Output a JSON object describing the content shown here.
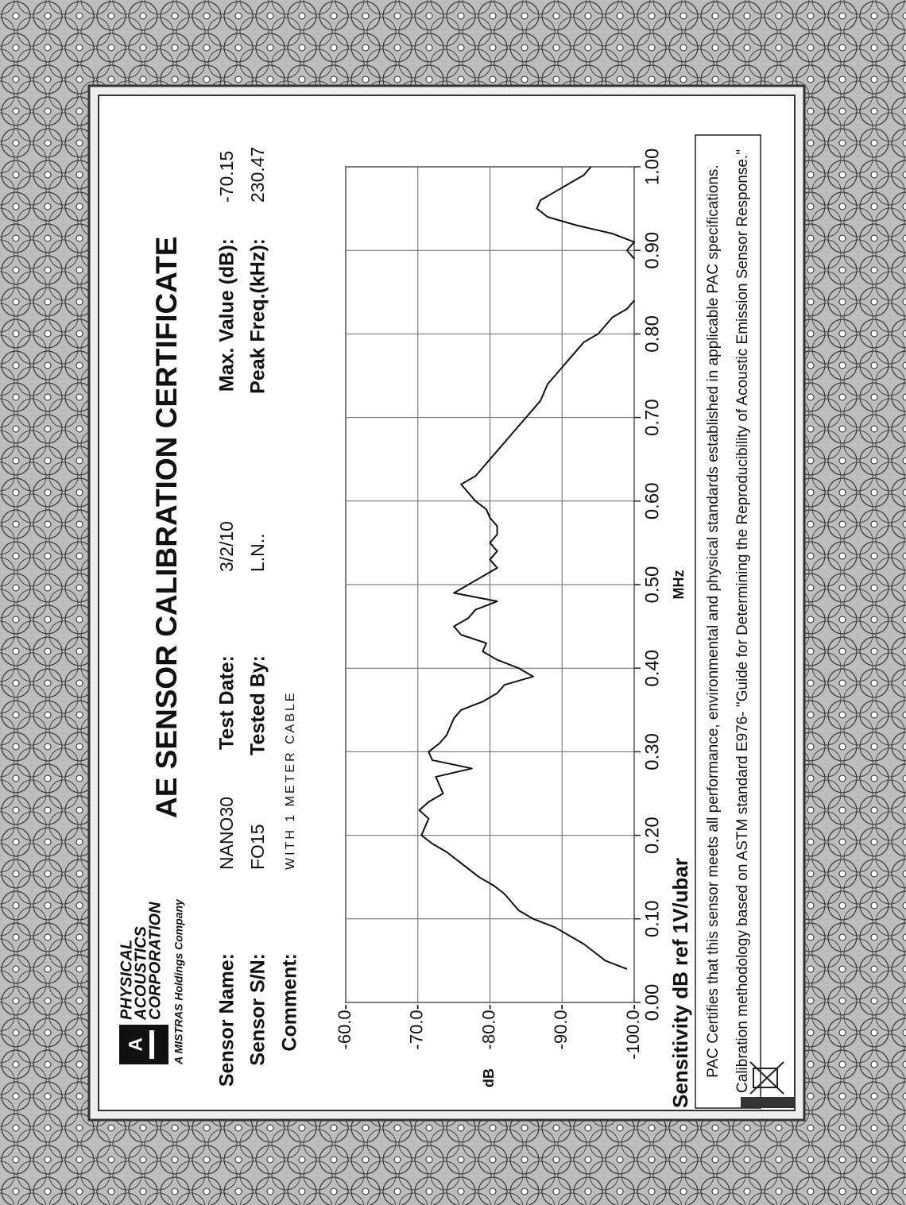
{
  "header": {
    "title": "AE SENSOR CALIBRATION CERTIFICATE"
  },
  "logo": {
    "lines": [
      "PHYSICAL",
      "ACOUSTICS",
      "CORPORATION"
    ],
    "tagline": "A MISTRAS Holdings Company"
  },
  "fields": [
    {
      "label": "Sensor Name:",
      "value": "NANO30"
    },
    {
      "label": "Sensor S/N:",
      "value": "FO15"
    },
    {
      "label": "Comment:",
      "value": "WITH 1 METER CABLE"
    },
    {
      "label": "Test Date:",
      "value": "3/2/10"
    },
    {
      "label": "Tested By:",
      "value": "L.N.."
    },
    {
      "label": "Max. Value (dB):",
      "value": "-70.15"
    },
    {
      "label": "Peak Freq.(kHz):",
      "value": "230.47"
    }
  ],
  "chart_data": {
    "type": "line",
    "x_label": "MHz",
    "y_label": "dB",
    "caption": "Sensitivity dB ref 1V/ubar",
    "color": "#111111",
    "grid": true,
    "xlim": [
      0,
      1
    ],
    "ylim": [
      -100,
      -60
    ],
    "xticks": [
      {
        "value": 0,
        "label": "0.00"
      },
      {
        "value": 0.1,
        "label": "0.10"
      },
      {
        "value": 0.2,
        "label": "0.20"
      },
      {
        "value": 0.3,
        "label": "0.30"
      },
      {
        "value": 0.4,
        "label": "0.40"
      },
      {
        "value": 0.5,
        "label": "0.50"
      },
      {
        "value": 0.6,
        "label": "0.60"
      },
      {
        "value": 0.7,
        "label": "0.70"
      },
      {
        "value": 0.8,
        "label": "0.80"
      },
      {
        "value": 0.9,
        "label": "0.90"
      },
      {
        "value": 1,
        "label": "1.00"
      }
    ],
    "yticks": [
      {
        "value": -60,
        "label": "-60.0-"
      },
      {
        "value": -70,
        "label": "-70.0-"
      },
      {
        "value": -80,
        "label": "-80.0-"
      },
      {
        "value": -90,
        "label": "-90.0-"
      },
      {
        "value": -100,
        "label": "-100.0-"
      }
    ],
    "x": [
      0.04,
      0.05,
      0.06,
      0.07,
      0.08,
      0.09,
      0.1,
      0.11,
      0.12,
      0.13,
      0.14,
      0.15,
      0.16,
      0.17,
      0.18,
      0.19,
      0.2,
      0.21,
      0.22,
      0.23,
      0.24,
      0.25,
      0.26,
      0.27,
      0.28,
      0.29,
      0.3,
      0.31,
      0.32,
      0.33,
      0.34,
      0.35,
      0.36,
      0.37,
      0.38,
      0.39,
      0.4,
      0.41,
      0.42,
      0.43,
      0.44,
      0.45,
      0.46,
      0.47,
      0.48,
      0.49,
      0.5,
      0.51,
      0.52,
      0.53,
      0.54,
      0.55,
      0.56,
      0.57,
      0.58,
      0.59,
      0.6,
      0.61,
      0.62,
      0.63,
      0.64,
      0.65,
      0.66,
      0.67,
      0.68,
      0.69,
      0.7,
      0.71,
      0.72,
      0.73,
      0.74,
      0.75,
      0.76,
      0.77,
      0.78,
      0.79,
      0.8,
      0.81,
      0.82,
      0.83,
      0.84,
      0.85,
      0.86,
      0.87,
      0.88,
      0.89,
      0.9,
      0.91,
      0.92,
      0.93,
      0.94,
      0.95,
      0.96,
      0.97,
      0.98,
      0.99,
      1.0
    ],
    "values": [
      -99,
      -96,
      -94.5,
      -93,
      -91,
      -89,
      -86,
      -84,
      -83,
      -82,
      -80.5,
      -78.5,
      -77,
      -75.5,
      -74,
      -72,
      -70.5,
      -71,
      -71.5,
      -70.2,
      -71.5,
      -73.5,
      -73,
      -72.5,
      -77.5,
      -72,
      -71.5,
      -73,
      -74,
      -74.5,
      -75,
      -76,
      -79,
      -81,
      -82,
      -86,
      -84,
      -81,
      -79,
      -79.5,
      -76,
      -75,
      -77,
      -78,
      -81,
      -75,
      -77,
      -79,
      -81,
      -80,
      -81,
      -80,
      -81,
      -81,
      -80,
      -79.5,
      -78,
      -77,
      -76,
      -78,
      -79,
      -80,
      -81,
      -82,
      -83,
      -84,
      -85,
      -86,
      -87,
      -87.5,
      -88,
      -89,
      -90,
      -91,
      -92,
      -93,
      -95,
      -96,
      -97,
      -99,
      -100,
      null,
      null,
      null,
      null,
      -100,
      -99,
      -100,
      -97,
      -92,
      -88,
      -86.5,
      -87,
      -89,
      -91,
      -93,
      -94
    ]
  },
  "footer": {
    "lines": [
      "PAC Certifies that this sensor meets all performance, environmental and physical standards established in applicable PAC specifications.",
      "Calibration methodology based on ASTM standard E976- \"Guide for Determining the Reproducibility of Acoustic Emission Sensor Response.\""
    ]
  }
}
